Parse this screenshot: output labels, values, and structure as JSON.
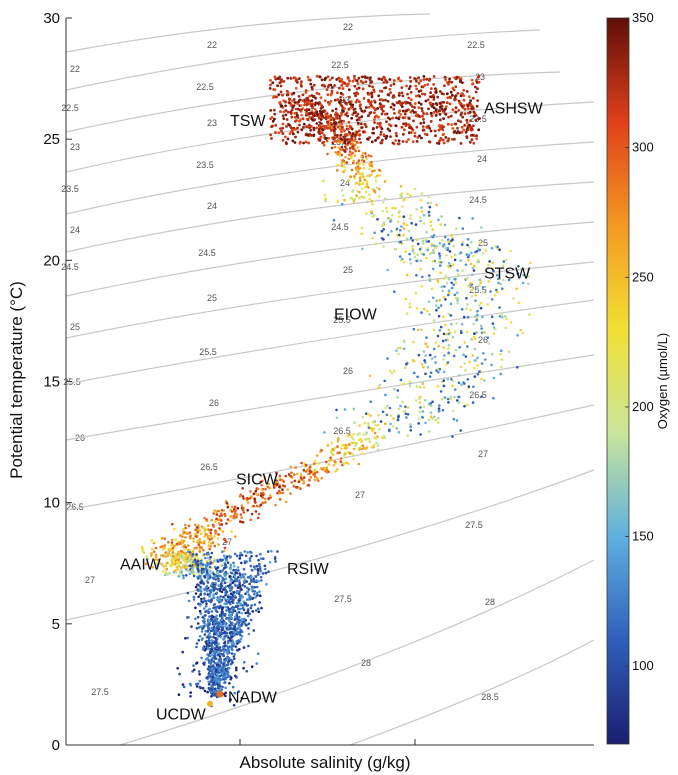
{
  "chart_data": {
    "type": "scatter",
    "title": "",
    "xlabel": "Absolute salinity (g/kg)",
    "ylabel": "Potential temperature (°C)",
    "ylim": [
      0,
      30
    ],
    "y_ticks": [
      "0",
      "5",
      "10",
      "15",
      "20",
      "25",
      "30"
    ],
    "grid": false,
    "colorbar": {
      "label": "Oxygen (µmol/L)",
      "range": [
        70,
        350
      ],
      "ticks": [
        "100",
        "150",
        "200",
        "250",
        "300",
        "350"
      ],
      "colormap": "jet-like (blue → cyan → yellow → red)",
      "colors": [
        "#1a1f6e",
        "#2f5fb8",
        "#5fb0e0",
        "#c9e59a",
        "#f2e032",
        "#f29a22",
        "#e0401a",
        "#5e0f0a"
      ]
    },
    "isopycnal_color": "#c8c8c8",
    "isopycnal_labels": [
      "22",
      "22.5",
      "23",
      "23.5",
      "24",
      "24.5",
      "25",
      "25.5",
      "26",
      "26.5",
      "27",
      "27.5",
      "28",
      "28.5"
    ],
    "water_masses": [
      {
        "name": "TSW",
        "temperature": 25.8
      },
      {
        "name": "ASHSW",
        "temperature": 26.3
      },
      {
        "name": "STSW",
        "temperature": 19.5
      },
      {
        "name": "EIOW",
        "temperature": 17.8
      },
      {
        "name": "SICW",
        "temperature": 11.0
      },
      {
        "name": "AAIW",
        "temperature": 7.5
      },
      {
        "name": "RSIW",
        "temperature": 7.3
      },
      {
        "name": "NADW",
        "temperature": 2.0
      },
      {
        "name": "UCDW",
        "temperature": 1.3
      }
    ]
  }
}
